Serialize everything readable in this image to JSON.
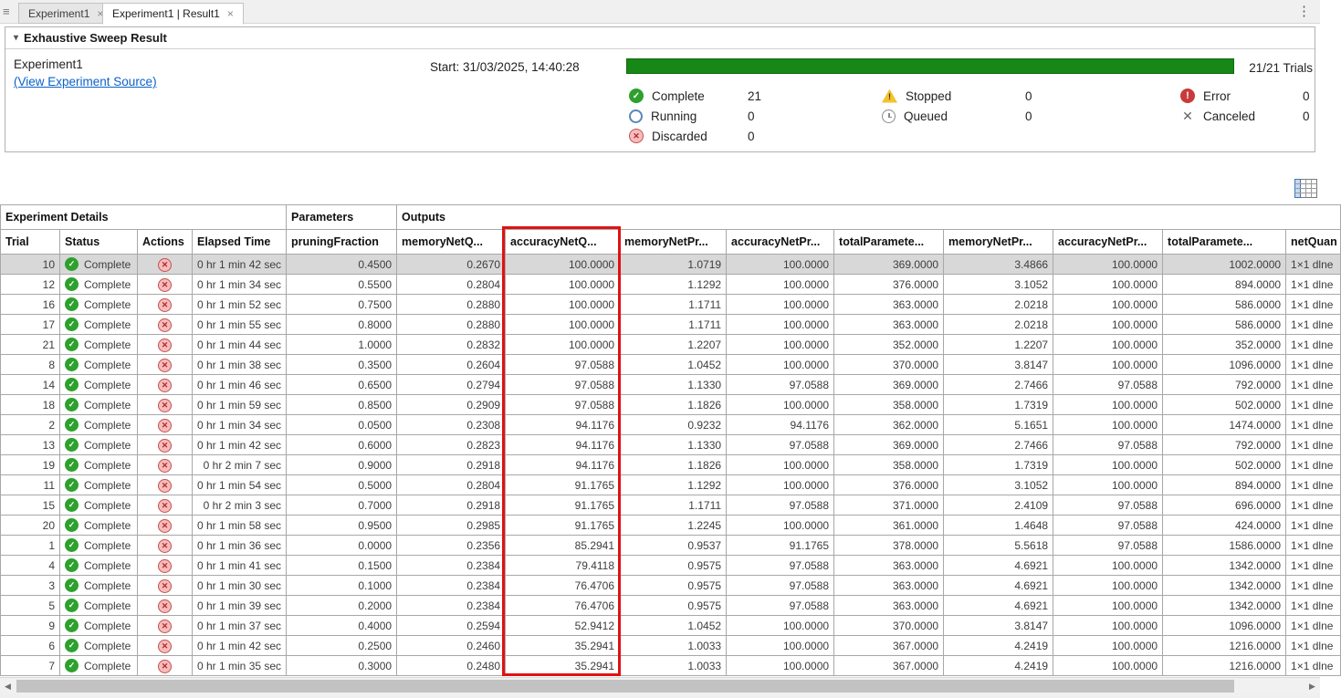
{
  "tabs": [
    {
      "label": "Experiment1",
      "close": "×"
    },
    {
      "label": "Experiment1 | Result1",
      "close": "×"
    }
  ],
  "panel": {
    "title": "Exhaustive Sweep Result",
    "experiment_name": "Experiment1",
    "source_link": "(View Experiment Source)",
    "start_label": "Start: 31/03/2025, 14:40:28",
    "trials_label": "21/21 Trials",
    "progress_percent": 100,
    "progress_color": "#178717"
  },
  "status_legend": [
    {
      "icon": "complete-icon",
      "label": "Complete",
      "count": "21"
    },
    {
      "icon": "running-icon",
      "label": "Running",
      "count": "0"
    },
    {
      "icon": "discarded-icon",
      "label": "Discarded",
      "count": "0"
    },
    {
      "icon": "stopped-icon",
      "label": "Stopped",
      "count": "0"
    },
    {
      "icon": "queued-icon",
      "label": "Queued",
      "count": "0"
    },
    {
      "icon": "error-icon",
      "label": "Error",
      "count": "0"
    },
    {
      "icon": "canceled-icon",
      "label": "Canceled",
      "count": "0"
    }
  ],
  "table": {
    "group_headers": [
      {
        "label": "Experiment Details",
        "colspan": 4
      },
      {
        "label": "Parameters",
        "colspan": 1
      },
      {
        "label": "Outputs",
        "colspan": 9
      }
    ],
    "columns": [
      {
        "key": "trial",
        "label": "Trial",
        "width": 65,
        "align": "r"
      },
      {
        "key": "status",
        "label": "Status",
        "width": 85,
        "align": "l",
        "type": "status"
      },
      {
        "key": "actions",
        "label": "Actions",
        "width": 60,
        "align": "c",
        "type": "action"
      },
      {
        "key": "elapsed",
        "label": "Elapsed Time",
        "width": 103,
        "align": "r"
      },
      {
        "key": "pruningFraction",
        "label": "pruningFraction",
        "width": 121,
        "align": "r"
      },
      {
        "key": "memoryNetQ",
        "label": "memoryNetQ...",
        "width": 119,
        "align": "r"
      },
      {
        "key": "accuracyNetQ",
        "label": "accuracyNetQ...",
        "width": 125,
        "align": "r",
        "highlighted": true
      },
      {
        "key": "memoryNetPr1",
        "label": "memoryNetPr...",
        "width": 117,
        "align": "r"
      },
      {
        "key": "accuracyNetPr1",
        "label": "accuracyNetPr...",
        "width": 118,
        "align": "r"
      },
      {
        "key": "totalParam1",
        "label": "totalParamete...",
        "width": 120,
        "align": "r"
      },
      {
        "key": "memoryNetPr2",
        "label": "memoryNetPr...",
        "width": 120,
        "align": "r"
      },
      {
        "key": "accuracyNetPr2",
        "label": "accuracyNetPr...",
        "width": 120,
        "align": "r"
      },
      {
        "key": "totalParam2",
        "label": "totalParamete...",
        "width": 135,
        "align": "r"
      },
      {
        "key": "netQuantized",
        "label": "netQuan",
        "width": 60,
        "align": "l"
      }
    ],
    "rows": [
      {
        "selected": true,
        "trial": "10",
        "status": "Complete",
        "elapsed": "0 hr 1 min 42 sec",
        "pruningFraction": "0.4500",
        "memoryNetQ": "0.2670",
        "accuracyNetQ": "100.0000",
        "memoryNetPr1": "1.0719",
        "accuracyNetPr1": "100.0000",
        "totalParam1": "369.0000",
        "memoryNetPr2": "3.4866",
        "accuracyNetPr2": "100.0000",
        "totalParam2": "1002.0000",
        "netQuantized": "1×1 dlne"
      },
      {
        "selected": false,
        "trial": "12",
        "status": "Complete",
        "elapsed": "0 hr 1 min 34 sec",
        "pruningFraction": "0.5500",
        "memoryNetQ": "0.2804",
        "accuracyNetQ": "100.0000",
        "memoryNetPr1": "1.1292",
        "accuracyNetPr1": "100.0000",
        "totalParam1": "376.0000",
        "memoryNetPr2": "3.1052",
        "accuracyNetPr2": "100.0000",
        "totalParam2": "894.0000",
        "netQuantized": "1×1 dlne"
      },
      {
        "selected": false,
        "trial": "16",
        "status": "Complete",
        "elapsed": "0 hr 1 min 52 sec",
        "pruningFraction": "0.7500",
        "memoryNetQ": "0.2880",
        "accuracyNetQ": "100.0000",
        "memoryNetPr1": "1.1711",
        "accuracyNetPr1": "100.0000",
        "totalParam1": "363.0000",
        "memoryNetPr2": "2.0218",
        "accuracyNetPr2": "100.0000",
        "totalParam2": "586.0000",
        "netQuantized": "1×1 dlne"
      },
      {
        "selected": false,
        "trial": "17",
        "status": "Complete",
        "elapsed": "0 hr 1 min 55 sec",
        "pruningFraction": "0.8000",
        "memoryNetQ": "0.2880",
        "accuracyNetQ": "100.0000",
        "memoryNetPr1": "1.1711",
        "accuracyNetPr1": "100.0000",
        "totalParam1": "363.0000",
        "memoryNetPr2": "2.0218",
        "accuracyNetPr2": "100.0000",
        "totalParam2": "586.0000",
        "netQuantized": "1×1 dlne"
      },
      {
        "selected": false,
        "trial": "21",
        "status": "Complete",
        "elapsed": "0 hr 1 min 44 sec",
        "pruningFraction": "1.0000",
        "memoryNetQ": "0.2832",
        "accuracyNetQ": "100.0000",
        "memoryNetPr1": "1.2207",
        "accuracyNetPr1": "100.0000",
        "totalParam1": "352.0000",
        "memoryNetPr2": "1.2207",
        "accuracyNetPr2": "100.0000",
        "totalParam2": "352.0000",
        "netQuantized": "1×1 dlne"
      },
      {
        "selected": false,
        "trial": "8",
        "status": "Complete",
        "elapsed": "0 hr 1 min 38 sec",
        "pruningFraction": "0.3500",
        "memoryNetQ": "0.2604",
        "accuracyNetQ": "97.0588",
        "memoryNetPr1": "1.0452",
        "accuracyNetPr1": "100.0000",
        "totalParam1": "370.0000",
        "memoryNetPr2": "3.8147",
        "accuracyNetPr2": "100.0000",
        "totalParam2": "1096.0000",
        "netQuantized": "1×1 dlne"
      },
      {
        "selected": false,
        "trial": "14",
        "status": "Complete",
        "elapsed": "0 hr 1 min 46 sec",
        "pruningFraction": "0.6500",
        "memoryNetQ": "0.2794",
        "accuracyNetQ": "97.0588",
        "memoryNetPr1": "1.1330",
        "accuracyNetPr1": "97.0588",
        "totalParam1": "369.0000",
        "memoryNetPr2": "2.7466",
        "accuracyNetPr2": "97.0588",
        "totalParam2": "792.0000",
        "netQuantized": "1×1 dlne"
      },
      {
        "selected": false,
        "trial": "18",
        "status": "Complete",
        "elapsed": "0 hr 1 min 59 sec",
        "pruningFraction": "0.8500",
        "memoryNetQ": "0.2909",
        "accuracyNetQ": "97.0588",
        "memoryNetPr1": "1.1826",
        "accuracyNetPr1": "100.0000",
        "totalParam1": "358.0000",
        "memoryNetPr2": "1.7319",
        "accuracyNetPr2": "100.0000",
        "totalParam2": "502.0000",
        "netQuantized": "1×1 dlne"
      },
      {
        "selected": false,
        "trial": "2",
        "status": "Complete",
        "elapsed": "0 hr 1 min 34 sec",
        "pruningFraction": "0.0500",
        "memoryNetQ": "0.2308",
        "accuracyNetQ": "94.1176",
        "memoryNetPr1": "0.9232",
        "accuracyNetPr1": "94.1176",
        "totalParam1": "362.0000",
        "memoryNetPr2": "5.1651",
        "accuracyNetPr2": "100.0000",
        "totalParam2": "1474.0000",
        "netQuantized": "1×1 dlne"
      },
      {
        "selected": false,
        "trial": "13",
        "status": "Complete",
        "elapsed": "0 hr 1 min 42 sec",
        "pruningFraction": "0.6000",
        "memoryNetQ": "0.2823",
        "accuracyNetQ": "94.1176",
        "memoryNetPr1": "1.1330",
        "accuracyNetPr1": "97.0588",
        "totalParam1": "369.0000",
        "memoryNetPr2": "2.7466",
        "accuracyNetPr2": "97.0588",
        "totalParam2": "792.0000",
        "netQuantized": "1×1 dlne"
      },
      {
        "selected": false,
        "trial": "19",
        "status": "Complete",
        "elapsed": "0 hr 2 min 7 sec",
        "pruningFraction": "0.9000",
        "memoryNetQ": "0.2918",
        "accuracyNetQ": "94.1176",
        "memoryNetPr1": "1.1826",
        "accuracyNetPr1": "100.0000",
        "totalParam1": "358.0000",
        "memoryNetPr2": "1.7319",
        "accuracyNetPr2": "100.0000",
        "totalParam2": "502.0000",
        "netQuantized": "1×1 dlne"
      },
      {
        "selected": false,
        "trial": "11",
        "status": "Complete",
        "elapsed": "0 hr 1 min 54 sec",
        "pruningFraction": "0.5000",
        "memoryNetQ": "0.2804",
        "accuracyNetQ": "91.1765",
        "memoryNetPr1": "1.1292",
        "accuracyNetPr1": "100.0000",
        "totalParam1": "376.0000",
        "memoryNetPr2": "3.1052",
        "accuracyNetPr2": "100.0000",
        "totalParam2": "894.0000",
        "netQuantized": "1×1 dlne"
      },
      {
        "selected": false,
        "trial": "15",
        "status": "Complete",
        "elapsed": "0 hr 2 min 3 sec",
        "pruningFraction": "0.7000",
        "memoryNetQ": "0.2918",
        "accuracyNetQ": "91.1765",
        "memoryNetPr1": "1.1711",
        "accuracyNetPr1": "97.0588",
        "totalParam1": "371.0000",
        "memoryNetPr2": "2.4109",
        "accuracyNetPr2": "97.0588",
        "totalParam2": "696.0000",
        "netQuantized": "1×1 dlne"
      },
      {
        "selected": false,
        "trial": "20",
        "status": "Complete",
        "elapsed": "0 hr 1 min 58 sec",
        "pruningFraction": "0.9500",
        "memoryNetQ": "0.2985",
        "accuracyNetQ": "91.1765",
        "memoryNetPr1": "1.2245",
        "accuracyNetPr1": "100.0000",
        "totalParam1": "361.0000",
        "memoryNetPr2": "1.4648",
        "accuracyNetPr2": "97.0588",
        "totalParam2": "424.0000",
        "netQuantized": "1×1 dlne"
      },
      {
        "selected": false,
        "trial": "1",
        "status": "Complete",
        "elapsed": "0 hr 1 min 36 sec",
        "pruningFraction": "0.0000",
        "memoryNetQ": "0.2356",
        "accuracyNetQ": "85.2941",
        "memoryNetPr1": "0.9537",
        "accuracyNetPr1": "91.1765",
        "totalParam1": "378.0000",
        "memoryNetPr2": "5.5618",
        "accuracyNetPr2": "97.0588",
        "totalParam2": "1586.0000",
        "netQuantized": "1×1 dlne"
      },
      {
        "selected": false,
        "trial": "4",
        "status": "Complete",
        "elapsed": "0 hr 1 min 41 sec",
        "pruningFraction": "0.1500",
        "memoryNetQ": "0.2384",
        "accuracyNetQ": "79.4118",
        "memoryNetPr1": "0.9575",
        "accuracyNetPr1": "97.0588",
        "totalParam1": "363.0000",
        "memoryNetPr2": "4.6921",
        "accuracyNetPr2": "100.0000",
        "totalParam2": "1342.0000",
        "netQuantized": "1×1 dlne"
      },
      {
        "selected": false,
        "trial": "3",
        "status": "Complete",
        "elapsed": "0 hr 1 min 30 sec",
        "pruningFraction": "0.1000",
        "memoryNetQ": "0.2384",
        "accuracyNetQ": "76.4706",
        "memoryNetPr1": "0.9575",
        "accuracyNetPr1": "97.0588",
        "totalParam1": "363.0000",
        "memoryNetPr2": "4.6921",
        "accuracyNetPr2": "100.0000",
        "totalParam2": "1342.0000",
        "netQuantized": "1×1 dlne"
      },
      {
        "selected": false,
        "trial": "5",
        "status": "Complete",
        "elapsed": "0 hr 1 min 39 sec",
        "pruningFraction": "0.2000",
        "memoryNetQ": "0.2384",
        "accuracyNetQ": "76.4706",
        "memoryNetPr1": "0.9575",
        "accuracyNetPr1": "97.0588",
        "totalParam1": "363.0000",
        "memoryNetPr2": "4.6921",
        "accuracyNetPr2": "100.0000",
        "totalParam2": "1342.0000",
        "netQuantized": "1×1 dlne"
      },
      {
        "selected": false,
        "trial": "9",
        "status": "Complete",
        "elapsed": "0 hr 1 min 37 sec",
        "pruningFraction": "0.4000",
        "memoryNetQ": "0.2594",
        "accuracyNetQ": "52.9412",
        "memoryNetPr1": "1.0452",
        "accuracyNetPr1": "100.0000",
        "totalParam1": "370.0000",
        "memoryNetPr2": "3.8147",
        "accuracyNetPr2": "100.0000",
        "totalParam2": "1096.0000",
        "netQuantized": "1×1 dlne"
      },
      {
        "selected": false,
        "trial": "6",
        "status": "Complete",
        "elapsed": "0 hr 1 min 42 sec",
        "pruningFraction": "0.2500",
        "memoryNetQ": "0.2460",
        "accuracyNetQ": "35.2941",
        "memoryNetPr1": "1.0033",
        "accuracyNetPr1": "100.0000",
        "totalParam1": "367.0000",
        "memoryNetPr2": "4.2419",
        "accuracyNetPr2": "100.0000",
        "totalParam2": "1216.0000",
        "netQuantized": "1×1 dlne"
      },
      {
        "selected": false,
        "trial": "7",
        "status": "Complete",
        "elapsed": "0 hr 1 min 35 sec",
        "pruningFraction": "0.3000",
        "memoryNetQ": "0.2480",
        "accuracyNetQ": "35.2941",
        "memoryNetPr1": "1.0033",
        "accuracyNetPr1": "100.0000",
        "totalParam1": "367.0000",
        "memoryNetPr2": "4.2419",
        "accuracyNetPr2": "100.0000",
        "totalParam2": "1216.0000",
        "netQuantized": "1×1 dlne"
      }
    ]
  },
  "colors": {
    "progress_green": "#178717",
    "highlight_red": "#e01212",
    "complete_green": "#2da12d",
    "discard_pink": "#f6bcbc",
    "error_red": "#c93a3a",
    "stopped_yellow": "#f2c230",
    "selected_row": "#d8d8d8",
    "link_blue": "#0b61c9"
  }
}
